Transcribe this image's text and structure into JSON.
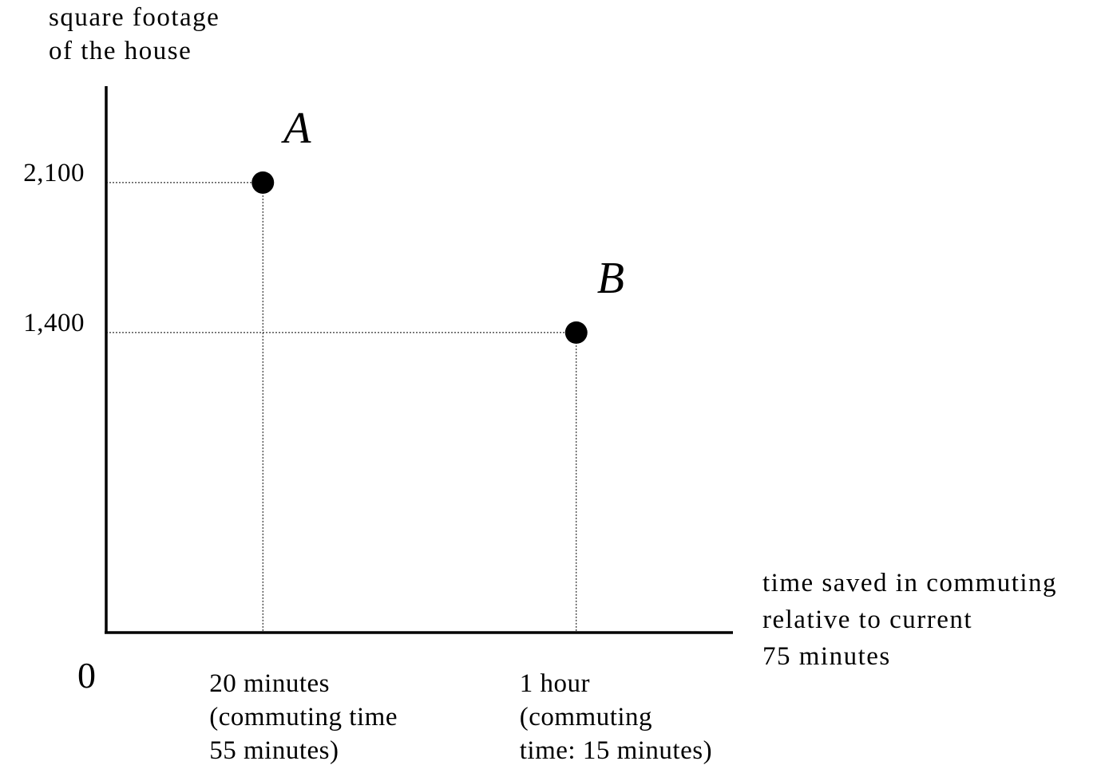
{
  "chart_data": {
    "type": "scatter",
    "ylabel_lines": [
      "square footage",
      "of the house"
    ],
    "xlabel_lines": [
      "time saved in commuting",
      "relative to current",
      "75 minutes"
    ],
    "origin_label": "0",
    "points": [
      {
        "label": "A",
        "x": 20,
        "y": 2100,
        "x_tick_lines": [
          "20 minutes",
          "(commuting time",
          "55 minutes)"
        ],
        "y_tick": "2,100"
      },
      {
        "label": "B",
        "x": 60,
        "y": 1400,
        "x_tick_lines": [
          "1 hour",
          "(commuting",
          "time: 15 minutes)"
        ],
        "y_tick": "1,400"
      }
    ],
    "xlim": [
      0,
      80
    ],
    "ylim": [
      0,
      2550
    ],
    "guide_lines": "dotted",
    "grid": false,
    "colors": {
      "axis": "#000000",
      "point": "#000000",
      "guide": "#000000"
    }
  }
}
